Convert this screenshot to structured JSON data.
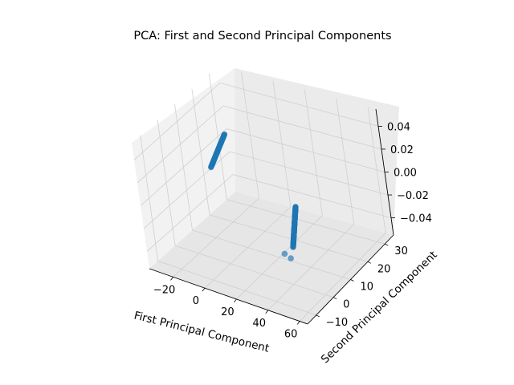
{
  "chart_data": {
    "type": "scatter",
    "projection": "3d",
    "title": "PCA: First and Second Principal Components",
    "xlabel": "First Principal Component",
    "ylabel": "Second Principal Component",
    "zlabel": "",
    "xlim": [
      -35,
      65
    ],
    "ylim": [
      -15,
      35
    ],
    "zlim": [
      -0.055,
      0.055
    ],
    "xticks": [
      "−20",
      "0",
      "20",
      "40",
      "60"
    ],
    "yticks": [
      "−10",
      "0",
      "10",
      "20",
      "30"
    ],
    "zticks": [
      "−0.04",
      "−0.02",
      "0.00",
      "0.02",
      "0.04"
    ],
    "grid": true,
    "legend": "none",
    "series": [
      {
        "color": "#1f77b4",
        "clusters": [
          {
            "x_start": -33,
            "x_end": -22,
            "y_start": 32,
            "y_end": 14,
            "z": 0.0,
            "count": 90
          },
          {
            "x_start": 38,
            "x_end": 56,
            "y_start": 8,
            "y_end": -10,
            "z": 0.0,
            "count": 120
          }
        ],
        "outliers": [
          {
            "x": 55,
            "y": -14,
            "z": 0.0
          },
          {
            "x": 60,
            "y": -15,
            "z": 0.0
          }
        ]
      }
    ]
  }
}
